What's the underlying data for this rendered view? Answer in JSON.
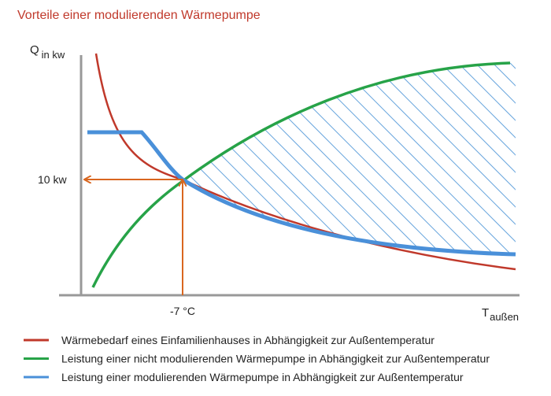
{
  "title": "Vorteile einer modulierenden Wärmepumpe",
  "y_axis": {
    "label": "Q",
    "subscript": "in kw",
    "marker_label": "10 kw"
  },
  "x_axis": {
    "label": "T",
    "subscript": "außen",
    "marker_label": "-7 °C"
  },
  "legend": [
    {
      "color": "#c0392b",
      "label": "Wärmebedarf eines Einfamilienhauses in Abhängigkeit zur Außentemperatur"
    },
    {
      "color": "#27a348",
      "label": "Leistung einer nicht modulierenden Wärmepumpe in Abhängigkeit zur Außentemperatur"
    },
    {
      "color": "#4a90d9",
      "label": "Leistung einer modulierenden Wärmepumpe in Abhängigkeit zur Außentemperatur"
    }
  ]
}
